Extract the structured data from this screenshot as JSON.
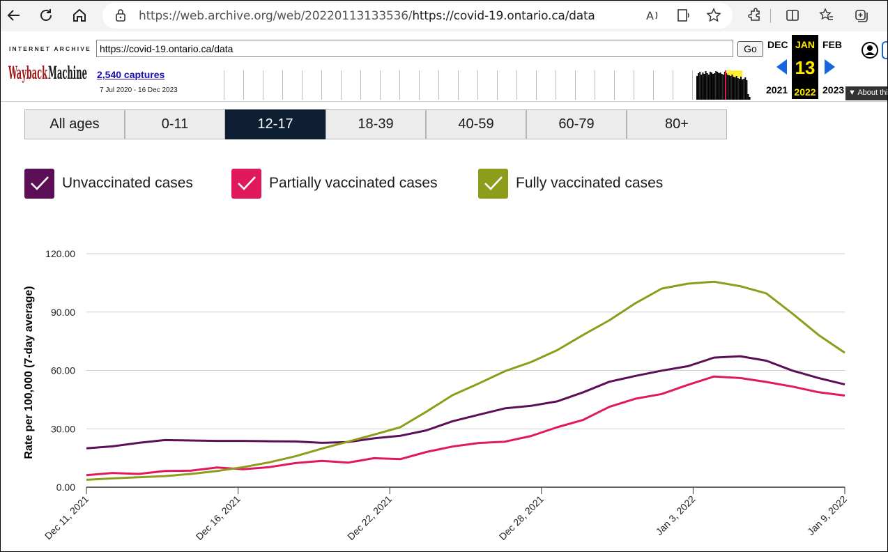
{
  "browser": {
    "url_prefix": "https://web.archive.org/web/20220113133536/",
    "url_suffix": "https://covid-19.ontario.ca/data",
    "icons": [
      "back-icon",
      "refresh-icon",
      "home-icon",
      "lock-icon",
      "read-aloud-icon",
      "immersive-reader-icon",
      "favorite-star-icon",
      "extensions-icon",
      "split-screen-icon",
      "favorites-icon",
      "collections-icon"
    ]
  },
  "wayback": {
    "brand_top": "INTERNET ARCHIVE",
    "logo_text": "WaybackMachine",
    "url_value": "https://covid-19.ontario.ca/data",
    "go_label": "Go",
    "captures": "2,540 captures",
    "date_range": "7 Jul 2020 - 16 Dec 2023",
    "prev_month": "DEC",
    "prev_year": "2021",
    "cur_month": "JAN",
    "cur_day": "13",
    "cur_year": "2022",
    "next_month": "FEB",
    "next_year": "2023",
    "about": "▼ About thi",
    "accent": "#ffea00"
  },
  "tabs": [
    {
      "label": "All ages",
      "active": false
    },
    {
      "label": "0-11",
      "active": false
    },
    {
      "label": "12-17",
      "active": true
    },
    {
      "label": "18-39",
      "active": false
    },
    {
      "label": "40-59",
      "active": false
    },
    {
      "label": "60-79",
      "active": false
    },
    {
      "label": "80+",
      "active": false
    }
  ],
  "legend": [
    {
      "label": "Unvaccinated cases",
      "color": "#5c0e56"
    },
    {
      "label": "Partially vaccinated cases",
      "color": "#e0195e"
    },
    {
      "label": "Fully vaccinated cases",
      "color": "#8d9c1a"
    }
  ],
  "chart_data": {
    "type": "line",
    "ylabel": "Rate per 100,000 (7-day average)",
    "ylim": [
      0,
      120
    ],
    "yticks": [
      "0.00",
      "30.00",
      "60.00",
      "90.00",
      "120.00"
    ],
    "xtick_labels": [
      "Dec 11, 2021",
      "Dec 16, 2021",
      "Dec 22, 2021",
      "Dec 28, 2021",
      "Jan 3, 2022",
      "Jan 9, 2022"
    ],
    "grid": true,
    "series": [
      {
        "name": "Unvaccinated cases",
        "color": "#5c0e56",
        "values": [
          20.0,
          21.0,
          22.8,
          24.2,
          24.0,
          23.8,
          23.8,
          23.6,
          23.5,
          22.8,
          23.2,
          25.1,
          26.4,
          29.2,
          33.9,
          37.2,
          40.5,
          41.8,
          44.1,
          48.8,
          54.2,
          57.2,
          59.9,
          62.2,
          66.6,
          67.3,
          65.0,
          59.9,
          56.1,
          52.8
        ]
      },
      {
        "name": "Partially vaccinated cases",
        "color": "#e0195e",
        "values": [
          6.2,
          7.3,
          6.8,
          8.3,
          8.5,
          10.1,
          9.2,
          10.3,
          12.4,
          13.5,
          12.6,
          14.9,
          14.4,
          18.1,
          20.9,
          22.7,
          23.4,
          26.3,
          30.8,
          34.6,
          41.3,
          45.5,
          47.9,
          52.6,
          56.9,
          56.1,
          54.1,
          51.7,
          48.8,
          47.1
        ]
      },
      {
        "name": "Fully vaccinated cases",
        "color": "#8d9c1a",
        "values": [
          3.8,
          4.5,
          5.1,
          5.7,
          6.8,
          8.3,
          10.3,
          12.8,
          15.9,
          19.8,
          23.4,
          27.0,
          30.8,
          38.8,
          47.3,
          53.3,
          59.6,
          64.3,
          70.4,
          78.3,
          85.8,
          94.6,
          102.1,
          104.6,
          105.6,
          103.3,
          99.6,
          89.2,
          78.2,
          69.1
        ]
      }
    ]
  }
}
